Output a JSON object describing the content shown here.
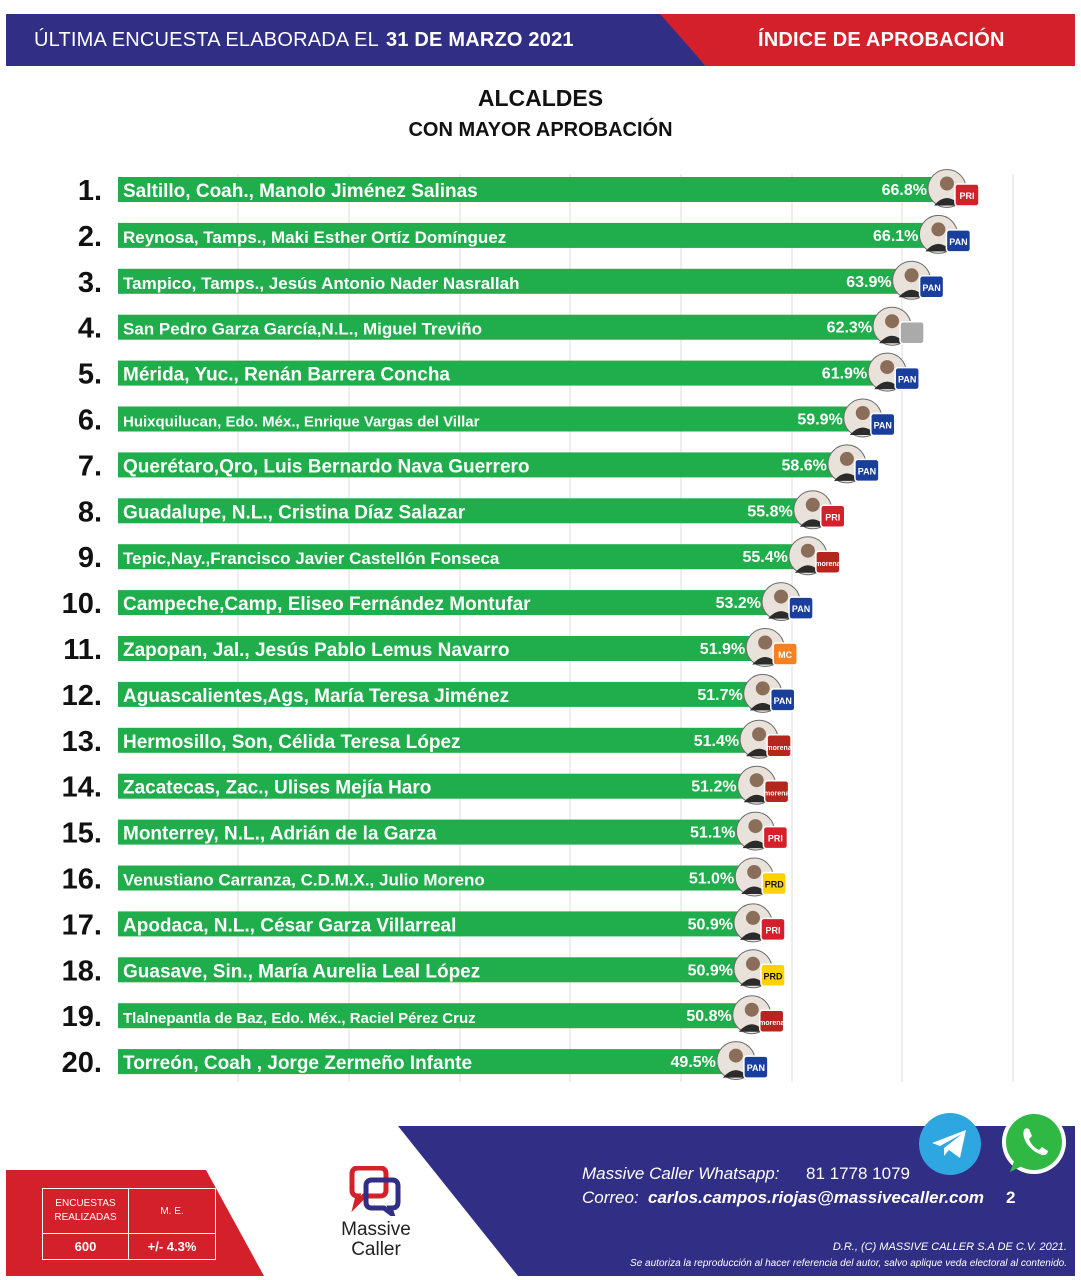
{
  "header": {
    "lead": "ÚLTIMA ENCUESTA ELABORADA EL",
    "date": "31 DE MARZO 2021",
    "right": "ÍNDICE DE APROBACIÓN"
  },
  "chart_data": {
    "type": "bar",
    "orientation": "horizontal",
    "title": "ALCALDES",
    "subtitle": "CON MAYOR APROBACIÓN",
    "grid": true,
    "ranks": [
      "1.",
      "2.",
      "3.",
      "4.",
      "5.",
      "6.",
      "7.",
      "8.",
      "9.",
      "10.",
      "11.",
      "12.",
      "13.",
      "14.",
      "15.",
      "16.",
      "17.",
      "18.",
      "19.",
      "20."
    ],
    "categories": [
      "Saltillo, Coah., Manolo Jiménez Salinas",
      "Reynosa, Tamps., Maki Esther Ortíz Domínguez",
      "Tampico, Tamps., Jesús Antonio Nader Nasrallah",
      "San Pedro Garza García,N.L., Miguel Treviño",
      "Mérida, Yuc., Renán Barrera Concha",
      "Huixquilucan, Edo. Méx., Enrique Vargas del Villar",
      "Querétaro,Qro, Luis Bernardo Nava Guerrero",
      "Guadalupe, N.L., Cristina Díaz Salazar",
      "Tepic,Nay.,Francisco Javier Castellón Fonseca",
      "Campeche,Camp, Eliseo Fernández Montufar",
      "Zapopan, Jal., Jesús Pablo Lemus Navarro",
      "Aguascalientes,Ags, María Teresa Jiménez",
      "Hermosillo, Son, Célida Teresa López",
      "Zacatecas, Zac., Ulises Mejía Haro",
      "Monterrey, N.L., Adrián de la Garza",
      "Venustiano Carranza, C.D.M.X., Julio Moreno",
      "Apodaca, N.L., César Garza Villarreal",
      "Guasave, Sin., María Aurelia Leal López",
      "Tlalnepantla de Baz, Edo. Méx., Raciel Pérez Cruz",
      "Torreón, Coah , Jorge Zermeño Infante"
    ],
    "values": [
      66.8,
      66.1,
      63.9,
      62.3,
      61.9,
      59.9,
      58.6,
      55.8,
      55.4,
      53.2,
      51.9,
      51.7,
      51.4,
      51.2,
      51.1,
      51.0,
      50.9,
      50.9,
      50.8,
      49.5
    ],
    "value_labels": [
      "66.8%",
      "66.1%",
      "63.9%",
      "62.3%",
      "61.9%",
      "59.9%",
      "58.6%",
      "55.8%",
      "55.4%",
      "53.2%",
      "51.9%",
      "51.7%",
      "51.4%",
      "51.2%",
      "51.1%",
      "51.0%",
      "50.9%",
      "50.9%",
      "50.8%",
      "49.5%"
    ],
    "parties": [
      "PRI",
      "PAN",
      "PAN",
      "IND",
      "PAN",
      "PAN",
      "PAN",
      "PRI",
      "MORENA",
      "PAN",
      "MC",
      "PAN",
      "MORENA",
      "MORENA",
      "PRI",
      "PRD",
      "PRI",
      "PRD",
      "MORENA",
      "PAN"
    ],
    "bar_color": "#1fae4b"
  },
  "party_badges": {
    "PAN": {
      "text": "PAN",
      "color": "#1a3e9c"
    },
    "PRI": {
      "text": "PRI",
      "color": "#d3202a"
    },
    "MORENA": {
      "text": "morena",
      "color": "#b5261e"
    },
    "PRD": {
      "text": "PRD",
      "color": "#ffd200"
    },
    "MC": {
      "text": "MC",
      "color": "#f58220"
    },
    "IND": {
      "text": "",
      "color": "#aaaaaa"
    }
  },
  "stats": {
    "surveys_label": "ENCUESTAS REALIZADAS",
    "me_label": "M. E.",
    "surveys_value": "600",
    "me_value": "+/- 4.3%"
  },
  "logo": {
    "line1": "Massive",
    "line2": "Caller"
  },
  "contact": {
    "whatsapp_label": "Massive Caller Whatsapp:",
    "whatsapp_number": "81 1778 1079",
    "email_label": "Correo:",
    "email": "carlos.campos.riojas@massivecaller.com",
    "page": "2"
  },
  "copyright": "D.R., (C) MASSIVE CALLER S.A DE C.V. 2021.",
  "disclaimer": "Se autoriza la reproducción al hacer referencia del autor, salvo aplique veda electoral al contenido.",
  "colors": {
    "navy": "#312e86",
    "red": "#d3202a",
    "green": "#1fae4b"
  }
}
